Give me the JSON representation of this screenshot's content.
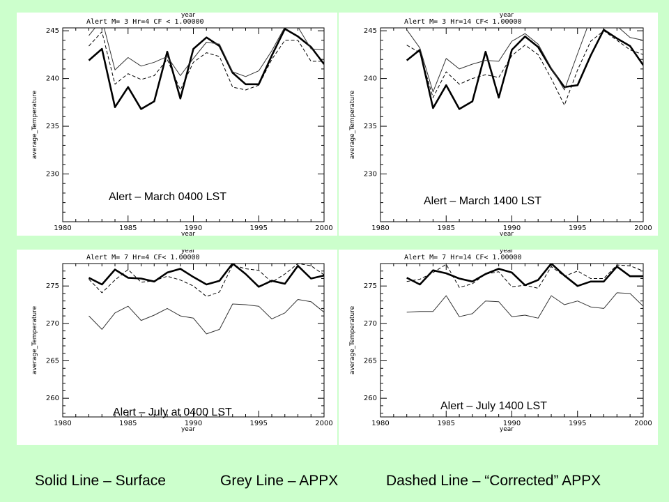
{
  "chart_data": [
    {
      "type": "line",
      "caption": "Alert – March 0400 LST",
      "header": "Alert M=      3 Hr=4 CF <      1.00000",
      "xlabel": "year",
      "ylabel": "average_Temperature",
      "xlim": [
        1980,
        2000
      ],
      "ylim": [
        225,
        245.3
      ],
      "x_ticks": [
        1980,
        1985,
        1990,
        1995,
        2000
      ],
      "y_ticks": [
        230,
        235,
        240,
        245
      ],
      "x": [
        1982,
        1983,
        1984,
        1985,
        1986,
        1987,
        1988,
        1989,
        1990,
        1991,
        1992,
        1993,
        1994,
        1995,
        1996,
        1997,
        1998,
        1999,
        2000
      ],
      "series": [
        {
          "style": "solid-bold",
          "values": [
            241.9,
            243.1,
            237.0,
            239.1,
            236.8,
            237.6,
            242.8,
            237.9,
            243.1,
            244.3,
            243.4,
            240.6,
            239.4,
            239.4,
            242.4,
            245.2,
            244.4,
            243.3,
            241.5
          ]
        },
        {
          "style": "grey-thin",
          "values": [
            244.5,
            246.2,
            240.9,
            242.2,
            241.3,
            241.7,
            242.3,
            240.3,
            242.1,
            243.8,
            243.6,
            240.7,
            240.2,
            240.8,
            242.9,
            245.4,
            245.4,
            243.1,
            243.0
          ]
        },
        {
          "style": "dashed",
          "values": [
            243.4,
            244.9,
            239.4,
            240.5,
            239.9,
            240.3,
            242.0,
            238.8,
            241.7,
            242.7,
            242.3,
            239.1,
            238.8,
            239.3,
            242.0,
            244.0,
            244.0,
            241.8,
            241.8
          ]
        }
      ]
    },
    {
      "type": "line",
      "caption": "Alert – March 1400 LST",
      "header": "Alert M=      3 Hr=14 CF<      1.00000",
      "xlabel": "year",
      "ylabel": "average_Temperature",
      "xlim": [
        1980,
        2000
      ],
      "ylim": [
        225,
        245.3
      ],
      "x_ticks": [
        1980,
        1985,
        1990,
        1995,
        2000
      ],
      "y_ticks": [
        230,
        235,
        240,
        245
      ],
      "x": [
        1982,
        1983,
        1984,
        1985,
        1986,
        1987,
        1988,
        1989,
        1990,
        1991,
        1992,
        1993,
        1994,
        1995,
        1996,
        1997,
        1998,
        1999,
        2000
      ],
      "series": [
        {
          "style": "solid-bold",
          "values": [
            241.9,
            243.0,
            236.9,
            239.3,
            236.8,
            237.6,
            242.8,
            238.0,
            243.0,
            244.4,
            243.3,
            241.0,
            239.1,
            239.3,
            242.4,
            245.1,
            244.2,
            243.4,
            241.4
          ]
        },
        {
          "style": "grey-thin",
          "values": [
            245.1,
            243.2,
            238.6,
            242.1,
            241.0,
            241.5,
            241.9,
            241.8,
            243.9,
            244.7,
            243.6,
            241.1,
            238.8,
            242.6,
            246.3,
            245.5,
            245.5,
            244.3,
            244.0
          ]
        },
        {
          "style": "dashed",
          "values": [
            243.5,
            242.7,
            238.0,
            240.7,
            239.4,
            240.0,
            240.4,
            240.1,
            242.4,
            243.5,
            242.5,
            240.0,
            237.2,
            240.9,
            243.9,
            245.0,
            244.0,
            243.0,
            242.5
          ]
        }
      ]
    },
    {
      "type": "line",
      "caption": "Alert – July at 0400 LST",
      "header": "Alert M=      7 Hr=4 CF<      1.00000",
      "xlabel": "year",
      "ylabel": "average_Temperature",
      "xlim": [
        1980,
        2000
      ],
      "ylim": [
        257.5,
        278
      ],
      "x_ticks": [
        1980,
        1985,
        1990,
        1995,
        2000
      ],
      "y_ticks": [
        260,
        265,
        270,
        275
      ],
      "x": [
        1982,
        1983,
        1984,
        1985,
        1986,
        1987,
        1988,
        1989,
        1990,
        1991,
        1992,
        1993,
        1994,
        1995,
        1996,
        1997,
        1998,
        1999,
        2000
      ],
      "series": [
        {
          "style": "solid-bold",
          "values": [
            276.1,
            275.2,
            277.2,
            276.1,
            276.0,
            275.6,
            276.8,
            277.3,
            276.2,
            275.2,
            275.7,
            278.0,
            276.6,
            274.9,
            275.7,
            275.3,
            277.7,
            276.0,
            276.4
          ]
        },
        {
          "style": "grey-thin",
          "values": [
            271.0,
            269.2,
            271.4,
            272.3,
            270.4,
            271.1,
            272.0,
            271.0,
            270.7,
            268.6,
            269.2,
            272.6,
            272.5,
            272.3,
            270.6,
            271.4,
            273.2,
            272.9,
            271.5
          ]
        },
        {
          "style": "dashed",
          "values": [
            275.9,
            274.1,
            275.8,
            277.2,
            275.5,
            275.7,
            276.3,
            275.8,
            275.0,
            273.6,
            274.2,
            277.8,
            277.3,
            277.1,
            275.5,
            276.6,
            278.0,
            277.7,
            276.5
          ]
        }
      ]
    },
    {
      "type": "line",
      "caption": "Alert – July 1400 LST",
      "header": "Alert M=      7 Hr=14 CF<      1.00000",
      "xlabel": "year",
      "ylabel": "average_Temperature",
      "xlim": [
        1980,
        2000
      ],
      "ylim": [
        257.5,
        278
      ],
      "x_ticks": [
        1980,
        1985,
        1990,
        1995,
        2000
      ],
      "y_ticks": [
        260,
        265,
        270,
        275
      ],
      "x": [
        1982,
        1983,
        1984,
        1985,
        1986,
        1987,
        1988,
        1989,
        1990,
        1991,
        1992,
        1993,
        1994,
        1995,
        1996,
        1997,
        1998,
        1999,
        2000
      ],
      "series": [
        {
          "style": "solid-bold",
          "values": [
            276.1,
            275.2,
            277.1,
            276.7,
            276.0,
            275.6,
            276.6,
            277.3,
            276.8,
            275.1,
            275.8,
            278.0,
            276.4,
            275.0,
            275.6,
            275.6,
            277.6,
            276.3,
            276.3
          ]
        },
        {
          "style": "grey-thin",
          "values": [
            271.5,
            271.6,
            271.6,
            273.7,
            270.9,
            271.3,
            273.0,
            272.9,
            270.9,
            271.1,
            270.7,
            273.7,
            272.5,
            273.0,
            272.2,
            272.0,
            274.1,
            274.0,
            272.3
          ]
        },
        {
          "style": "dashed",
          "values": [
            275.6,
            275.9,
            276.8,
            277.9,
            274.8,
            275.3,
            276.6,
            276.9,
            274.9,
            275.1,
            274.7,
            277.6,
            276.3,
            277.0,
            276.0,
            276.0,
            277.8,
            277.7,
            277.0
          ]
        }
      ]
    }
  ],
  "footer": {
    "solid": "Solid Line – Surface",
    "grey": "Grey Line – APPX",
    "dashed": "Dashed Line – “Corrected” APPX"
  },
  "colors": {
    "background": "#ccffcc",
    "panel": "#ffffff",
    "solid": "#000000",
    "grey": "#333333",
    "dashed": "#000000"
  }
}
